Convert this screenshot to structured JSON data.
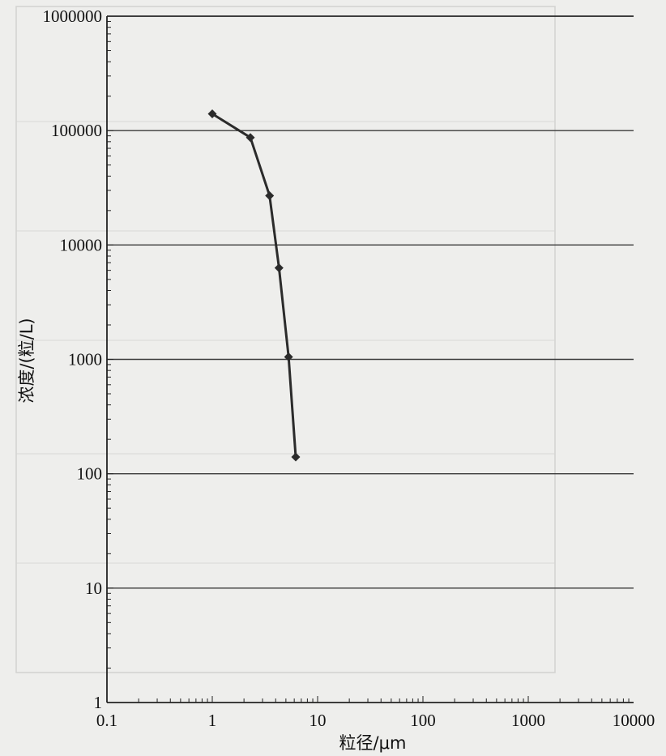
{
  "chart_data": {
    "type": "line",
    "xlabel": "粒径/μm",
    "ylabel": "浓度/(粒/L)",
    "x_scale": "log",
    "y_scale": "log",
    "xlim": [
      0.1,
      10000
    ],
    "ylim": [
      1,
      1000000
    ],
    "x_ticks": [
      "0.1",
      "1",
      "10",
      "100",
      "1000",
      "10000"
    ],
    "y_ticks": [
      "1",
      "10",
      "100",
      "1000",
      "10000",
      "100000",
      "1000000"
    ],
    "grid": "horizontal major lines",
    "legend": "none",
    "series": [
      {
        "color": "#2b2b2b",
        "marker": "diamond",
        "points": [
          {
            "x": 1.0,
            "y": 140000
          },
          {
            "x": 2.3,
            "y": 87000
          },
          {
            "x": 3.5,
            "y": 27000
          },
          {
            "x": 4.3,
            "y": 6300
          },
          {
            "x": 5.3,
            "y": 1050
          },
          {
            "x": 6.2,
            "y": 140
          }
        ]
      }
    ]
  }
}
